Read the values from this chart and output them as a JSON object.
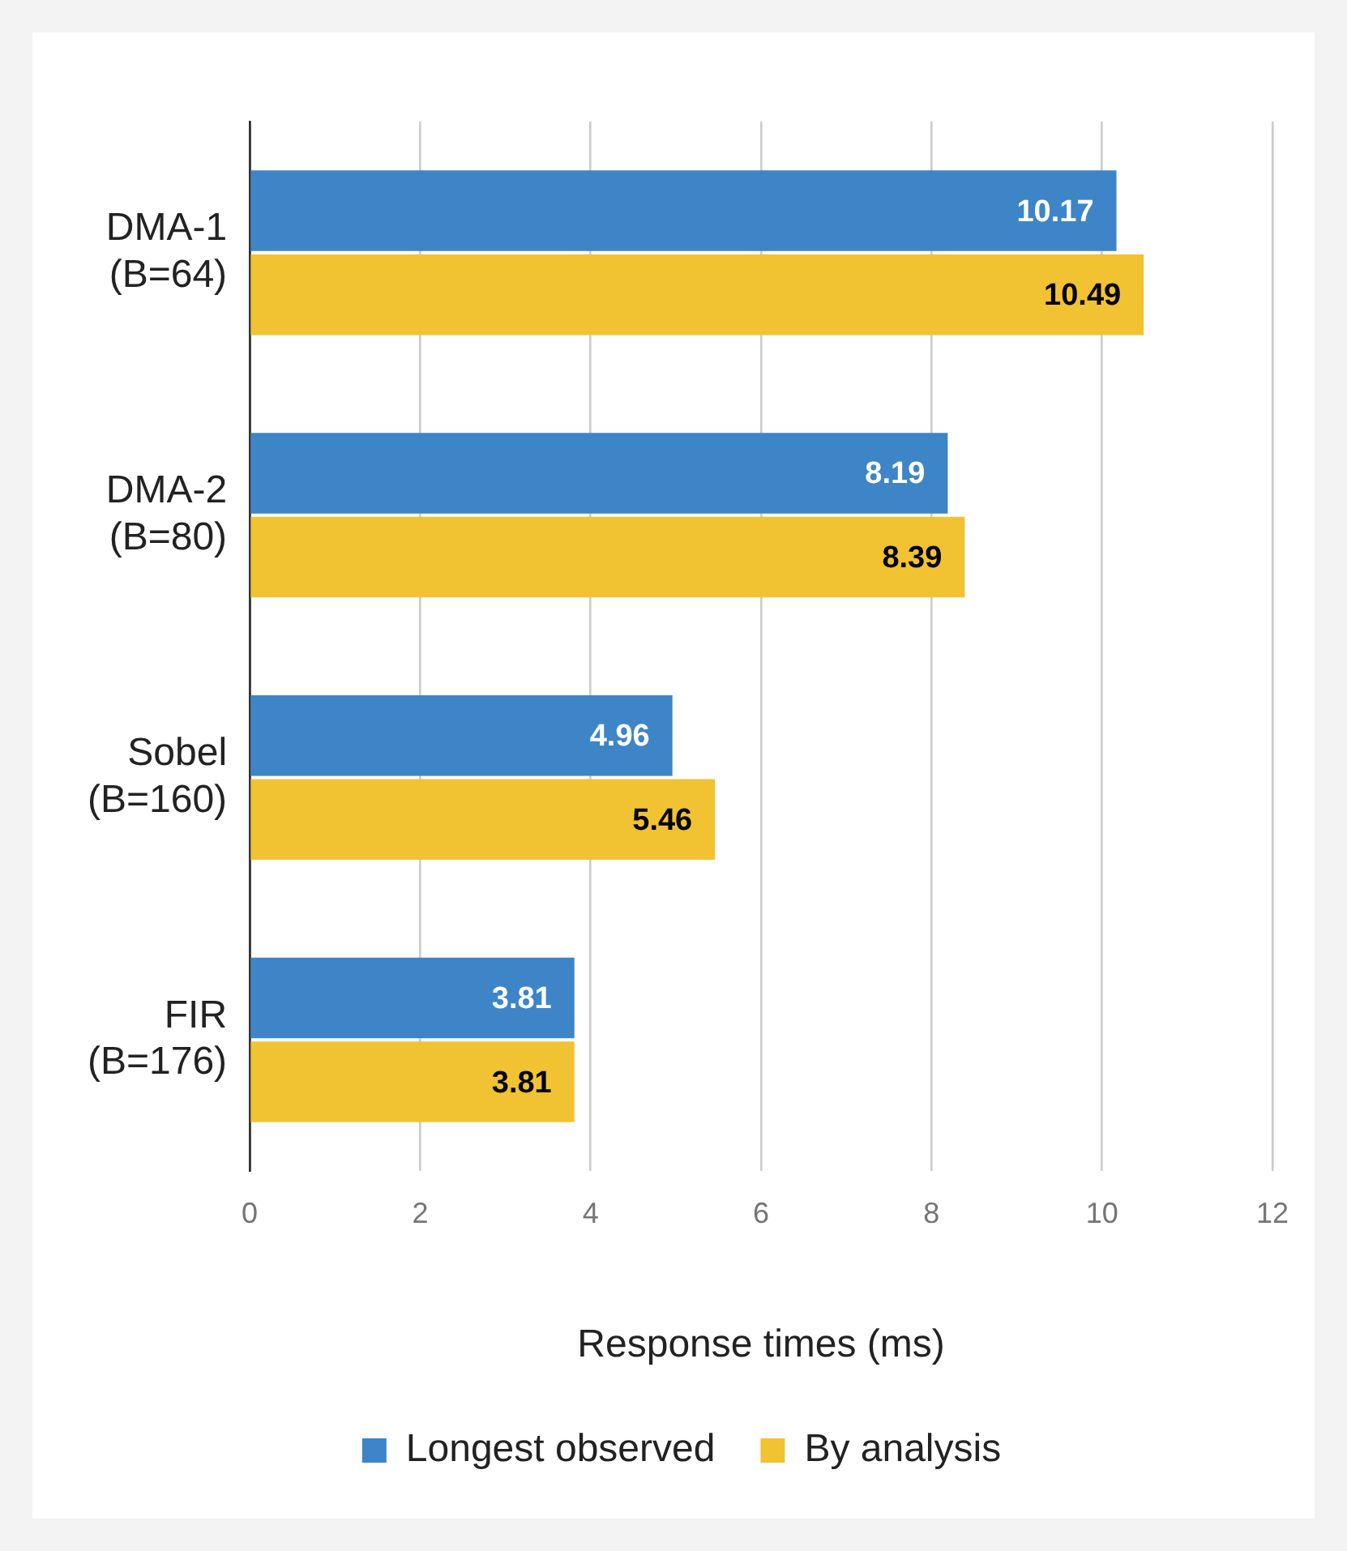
{
  "chart_data": {
    "type": "bar",
    "orientation": "horizontal",
    "xlabel": "Response times (ms)",
    "categories": [
      "DMA-1\n(B=64)",
      "DMA-2\n(B=80)",
      "Sobel\n(B=160)",
      "FIR\n(B=176)"
    ],
    "series": [
      {
        "name": "Longest observed",
        "color": "#3d85c6",
        "values": [
          10.17,
          8.19,
          4.96,
          3.81
        ]
      },
      {
        "name": "By analysis",
        "color": "#f1c232",
        "values": [
          10.49,
          8.39,
          5.46,
          3.81
        ]
      }
    ],
    "xlim": [
      0,
      12
    ],
    "xticks": [
      0,
      2,
      4,
      6,
      8,
      10,
      12
    ],
    "grid": "x",
    "legend": "bottom",
    "data_labels": true
  }
}
